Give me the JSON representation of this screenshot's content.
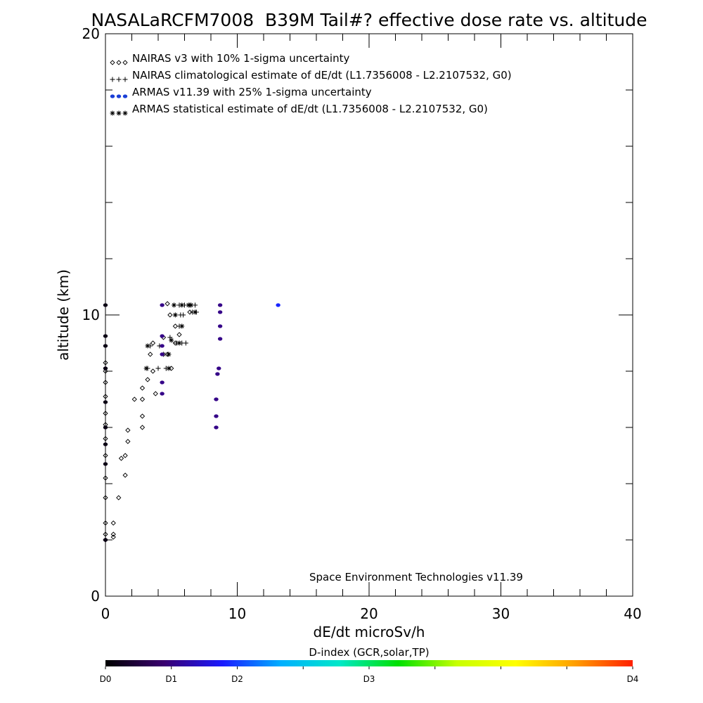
{
  "chart_data": {
    "type": "scatter",
    "title": "NASALaRCFM7008  B39M Tail#? effective dose rate vs. altitude",
    "xlabel": "dE/dt microSv/h",
    "ylabel": "altitude (km)",
    "xlim": [
      0,
      40
    ],
    "ylim": [
      0,
      20
    ],
    "x_ticks": [
      "0",
      "10",
      "20",
      "30",
      "40"
    ],
    "y_ticks": [
      "0",
      "10",
      "20"
    ],
    "grid": false,
    "legend_position": "top-left",
    "annotation": "Space Environment Technologies v11.39",
    "colorbar": {
      "title": "D-index (GCR,solar,TP)",
      "labels": [
        {
          "text": "D0",
          "value": 0
        },
        {
          "text": "D1",
          "value": 0.125
        },
        {
          "text": "D2",
          "value": 0.25
        },
        {
          "text": "D3",
          "value": 0.5
        },
        {
          "text": "D4",
          "value": 1.0
        }
      ],
      "stops": [
        "#000000",
        "#3a0070",
        "#1a1aff",
        "#00b0ff",
        "#00e8c8",
        "#00e000",
        "#c8ff00",
        "#ffff00",
        "#ffa000",
        "#ff2000"
      ]
    },
    "series": [
      {
        "name": "NAIRAS v3 with 10% 1-sigma uncertainty",
        "marker": "diamond",
        "color": "#000000",
        "points": [
          {
            "x": 0.0,
            "y": 2.0
          },
          {
            "x": 0.0,
            "y": 2.2
          },
          {
            "x": 0.0,
            "y": 2.6
          },
          {
            "x": 0.0,
            "y": 3.5
          },
          {
            "x": 0.0,
            "y": 4.2
          },
          {
            "x": 0.0,
            "y": 5.0
          },
          {
            "x": 0.0,
            "y": 5.6
          },
          {
            "x": 0.0,
            "y": 6.1
          },
          {
            "x": 0.0,
            "y": 6.5
          },
          {
            "x": 0.0,
            "y": 7.1
          },
          {
            "x": 0.0,
            "y": 7.6
          },
          {
            "x": 0.0,
            "y": 8.0
          },
          {
            "x": 0.0,
            "y": 8.3
          },
          {
            "x": 0.6,
            "y": 2.1
          },
          {
            "x": 0.6,
            "y": 2.2
          },
          {
            "x": 0.6,
            "y": 2.6
          },
          {
            "x": 1.0,
            "y": 3.5
          },
          {
            "x": 1.2,
            "y": 4.9
          },
          {
            "x": 1.5,
            "y": 4.3
          },
          {
            "x": 1.5,
            "y": 5.0
          },
          {
            "x": 1.7,
            "y": 5.5
          },
          {
            "x": 1.7,
            "y": 5.9
          },
          {
            "x": 2.8,
            "y": 6.0
          },
          {
            "x": 2.8,
            "y": 6.4
          },
          {
            "x": 2.2,
            "y": 7.0
          },
          {
            "x": 2.8,
            "y": 7.0
          },
          {
            "x": 2.8,
            "y": 7.4
          },
          {
            "x": 3.2,
            "y": 7.7
          },
          {
            "x": 3.6,
            "y": 8.0
          },
          {
            "x": 3.8,
            "y": 7.2
          },
          {
            "x": 3.4,
            "y": 8.6
          },
          {
            "x": 3.6,
            "y": 9.0
          },
          {
            "x": 4.4,
            "y": 9.2
          },
          {
            "x": 4.7,
            "y": 8.6
          },
          {
            "x": 4.9,
            "y": 10.0
          },
          {
            "x": 4.7,
            "y": 10.4
          },
          {
            "x": 5.3,
            "y": 9.0
          },
          {
            "x": 5.6,
            "y": 9.3
          },
          {
            "x": 6.4,
            "y": 10.1
          },
          {
            "x": 5.3,
            "y": 9.6
          },
          {
            "x": 5.0,
            "y": 8.1
          }
        ]
      },
      {
        "name": "NAIRAS climatological estimate of dE/dt (L1.7356008 - L2.2107532, G0)",
        "marker": "plus",
        "color": "#000000",
        "points": [
          {
            "x": 3.2,
            "y": 8.1
          },
          {
            "x": 4.0,
            "y": 8.1
          },
          {
            "x": 4.6,
            "y": 8.1
          },
          {
            "x": 3.4,
            "y": 8.9
          },
          {
            "x": 4.1,
            "y": 8.9
          },
          {
            "x": 4.9,
            "y": 9.2
          },
          {
            "x": 5.4,
            "y": 9.0
          },
          {
            "x": 5.8,
            "y": 9.0
          },
          {
            "x": 6.1,
            "y": 9.0
          },
          {
            "x": 5.6,
            "y": 9.6
          },
          {
            "x": 5.7,
            "y": 10.0
          },
          {
            "x": 5.9,
            "y": 10.0
          },
          {
            "x": 6.6,
            "y": 10.1
          },
          {
            "x": 6.9,
            "y": 10.1
          },
          {
            "x": 5.6,
            "y": 10.35
          },
          {
            "x": 6.0,
            "y": 10.35
          },
          {
            "x": 6.4,
            "y": 10.35
          },
          {
            "x": 6.8,
            "y": 10.35
          }
        ]
      },
      {
        "name": "ARMAS v11.39 with 25% 1-sigma uncertainty",
        "marker": "dot",
        "color": "#1a3fd6",
        "points": [
          {
            "x": 0.0,
            "y": 10.35,
            "d": 0.02
          },
          {
            "x": 0.0,
            "y": 9.25,
            "d": 0.02
          },
          {
            "x": 0.0,
            "y": 8.9,
            "d": 0.02
          },
          {
            "x": 0.0,
            "y": 8.1,
            "d": 0.02
          },
          {
            "x": 0.0,
            "y": 6.9,
            "d": 0.02
          },
          {
            "x": 0.0,
            "y": 6.0,
            "d": 0.02
          },
          {
            "x": 0.0,
            "y": 5.4,
            "d": 0.02
          },
          {
            "x": 0.0,
            "y": 4.7,
            "d": 0.02
          },
          {
            "x": 0.0,
            "y": 2.0,
            "d": 0.02
          },
          {
            "x": 4.3,
            "y": 10.35,
            "d": 0.13
          },
          {
            "x": 4.3,
            "y": 9.25,
            "d": 0.13
          },
          {
            "x": 4.3,
            "y": 8.9,
            "d": 0.13
          },
          {
            "x": 4.3,
            "y": 8.6,
            "d": 0.13
          },
          {
            "x": 4.3,
            "y": 7.6,
            "d": 0.13
          },
          {
            "x": 4.3,
            "y": 7.2,
            "d": 0.13
          },
          {
            "x": 8.4,
            "y": 6.0,
            "d": 0.13
          },
          {
            "x": 8.4,
            "y": 6.4,
            "d": 0.13
          },
          {
            "x": 8.4,
            "y": 7.0,
            "d": 0.13
          },
          {
            "x": 8.5,
            "y": 7.9,
            "d": 0.13
          },
          {
            "x": 8.6,
            "y": 8.1,
            "d": 0.13
          },
          {
            "x": 8.7,
            "y": 9.15,
            "d": 0.13
          },
          {
            "x": 8.7,
            "y": 9.6,
            "d": 0.13
          },
          {
            "x": 8.7,
            "y": 10.1,
            "d": 0.13
          },
          {
            "x": 8.7,
            "y": 10.35,
            "d": 0.13
          },
          {
            "x": 13.1,
            "y": 10.35,
            "d": 0.23
          }
        ]
      },
      {
        "name": "ARMAS statistical estimate of dE/dt (L1.7356008 - L2.2107532, G0)",
        "marker": "asterisk",
        "color": "#000000",
        "points": [
          {
            "x": 3.1,
            "y": 8.1
          },
          {
            "x": 4.8,
            "y": 8.1
          },
          {
            "x": 3.2,
            "y": 8.9
          },
          {
            "x": 4.4,
            "y": 8.6
          },
          {
            "x": 4.8,
            "y": 8.6
          },
          {
            "x": 5.0,
            "y": 9.1
          },
          {
            "x": 5.3,
            "y": 10.0
          },
          {
            "x": 5.8,
            "y": 9.6
          },
          {
            "x": 6.8,
            "y": 10.1
          },
          {
            "x": 5.6,
            "y": 9.0
          },
          {
            "x": 5.2,
            "y": 10.35
          },
          {
            "x": 5.8,
            "y": 10.35
          },
          {
            "x": 6.3,
            "y": 10.35
          },
          {
            "x": 6.5,
            "y": 10.35
          }
        ]
      }
    ]
  }
}
